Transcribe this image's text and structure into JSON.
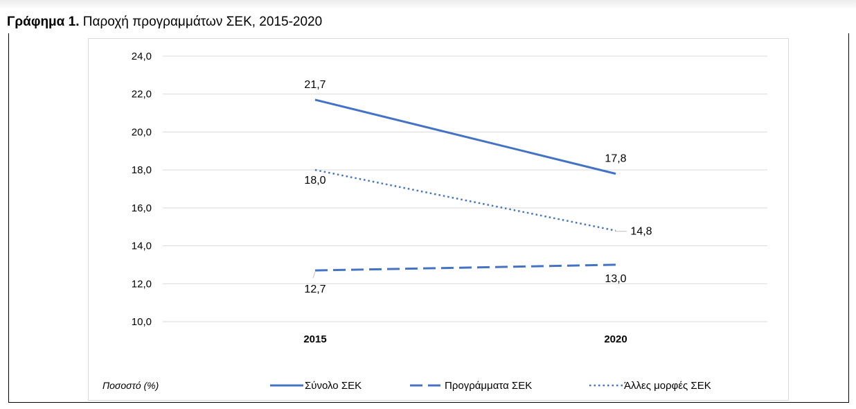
{
  "figure": {
    "title_bold": "Γράφημα 1.",
    "title_rest": " Παροχή προγραμμάτων ΣΕΚ, 2015-2020"
  },
  "chart_data": {
    "type": "line",
    "categories": [
      "2015",
      "2020"
    ],
    "ylim": [
      10.0,
      24.0
    ],
    "y_ticks": [
      "10,0",
      "12,0",
      "14,0",
      "16,0",
      "18,0",
      "20,0",
      "22,0",
      "24,0"
    ],
    "ylabel": "Ποσοστό (%)",
    "grid": true,
    "legend_position": "bottom",
    "series": [
      {
        "name": "Σύνολο ΣΕΚ",
        "values": [
          21.7,
          17.8
        ],
        "labels": [
          "21,7",
          "17,8"
        ],
        "style": "solid",
        "color": "#4472c4"
      },
      {
        "name": "Προγράμματα ΣΕΚ",
        "values": [
          12.7,
          13.0
        ],
        "labels": [
          "12,7",
          "13,0"
        ],
        "style": "dashed",
        "color": "#4472c4"
      },
      {
        "name": "Άλλες μορφές ΣΕΚ",
        "values": [
          18.0,
          14.8
        ],
        "labels": [
          "18,0",
          "14,8"
        ],
        "style": "dotted",
        "color": "#4472c4"
      }
    ]
  }
}
